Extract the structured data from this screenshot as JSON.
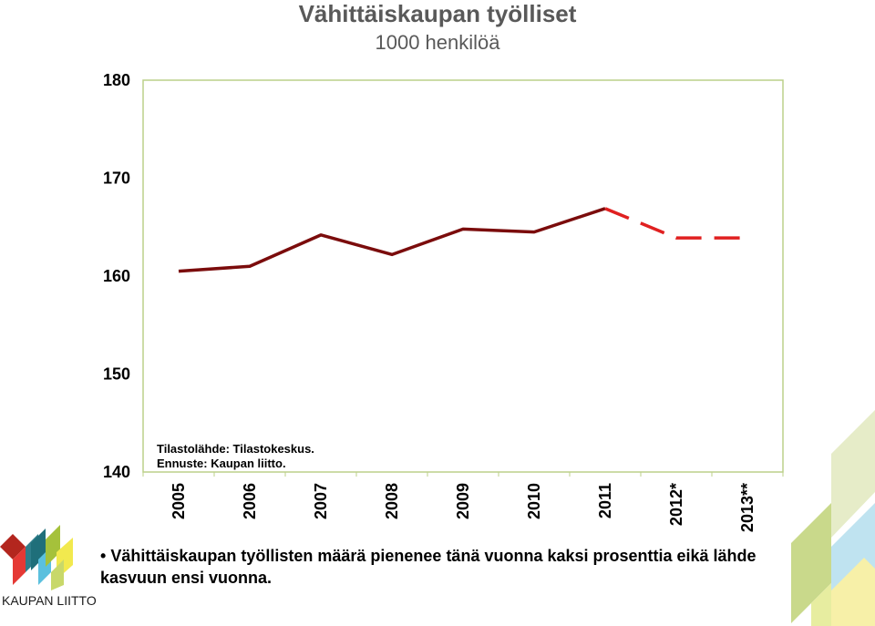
{
  "chart_data": {
    "type": "line",
    "title": "Vähittäiskaupan työlliset",
    "subtitle": "1000 henkilöä",
    "categories": [
      "2005",
      "2006",
      "2007",
      "2008",
      "2009",
      "2010",
      "2011",
      "2012*",
      "2013**"
    ],
    "series": [
      {
        "values": [
          160.5,
          161.0,
          164.2,
          162.2,
          164.8,
          164.5,
          166.9,
          null,
          null
        ],
        "color": "#7b0c0c",
        "style": "solid"
      },
      {
        "values": [
          null,
          null,
          null,
          null,
          null,
          null,
          166.9,
          163.9,
          163.9
        ],
        "color": "#e02020",
        "style": "dashed"
      }
    ],
    "yticks": [
      140,
      150,
      160,
      170,
      180
    ],
    "ylim": [
      140,
      180
    ],
    "grid": false,
    "annotation_lines": [
      "Tilastolähde: Tilastokeskus.",
      "Ennuste: Kaupan liitto."
    ]
  },
  "footer": {
    "bullet_text": "Vähittäiskaupan työllisten määrä pienenee tänä vuonna kaksi prosenttia eikä lähde kasvuun ensi vuonna.",
    "logo_text": "KAUPAN LIITTO"
  }
}
